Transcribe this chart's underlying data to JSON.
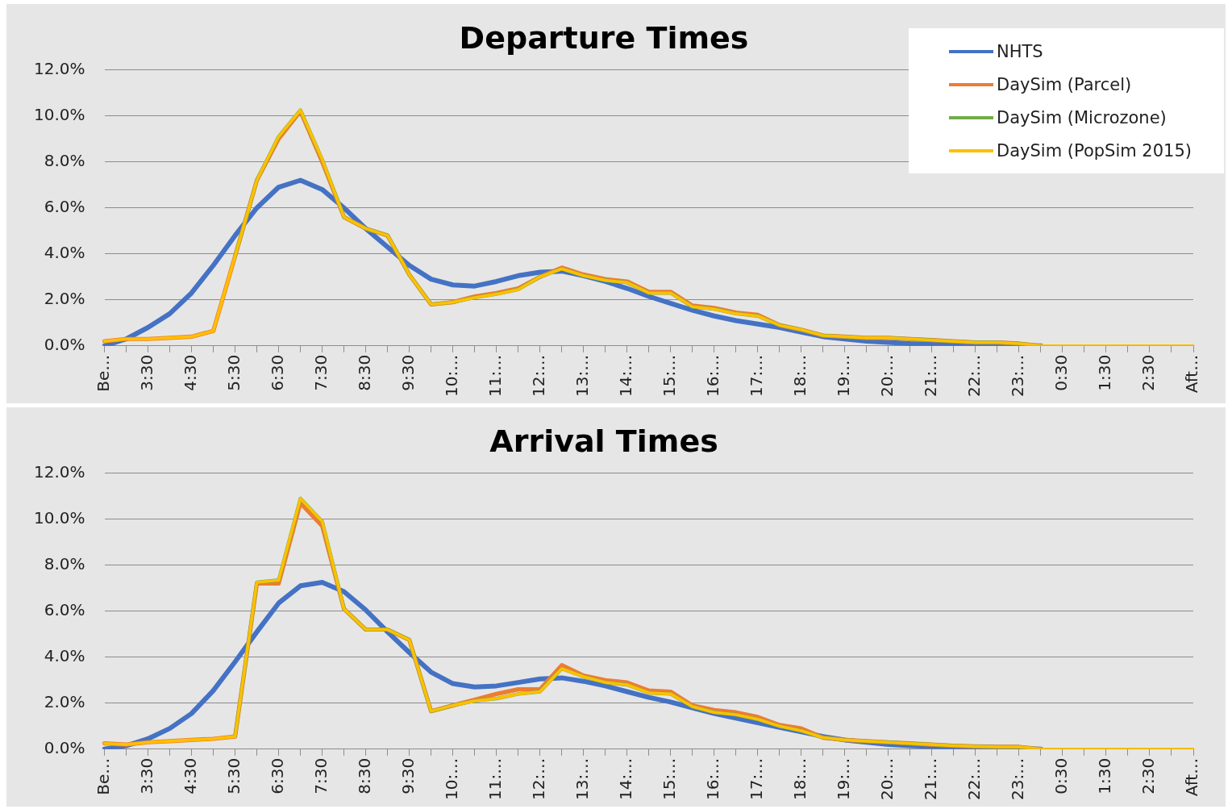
{
  "chart_data": [
    {
      "type": "line",
      "title": "Departure Times",
      "categories": [
        "Be…",
        null,
        "3:30",
        null,
        "4:30",
        null,
        "5:30",
        null,
        "6:30",
        null,
        "7:30",
        null,
        "8:30",
        null,
        "9:30",
        null,
        "10:…",
        null,
        "11:…",
        null,
        "12:…",
        null,
        "13:…",
        null,
        "14:…",
        null,
        "15:…",
        null,
        "16:…",
        null,
        "17:…",
        null,
        "18:…",
        null,
        "19:…",
        null,
        "20:…",
        null,
        "21:…",
        null,
        "22:…",
        null,
        "23:…",
        null,
        "0:30",
        null,
        "1:30",
        null,
        "2:30",
        null,
        "Aft…"
      ],
      "series": [
        {
          "name": "NHTS",
          "color": "#4472c4",
          "values": [
            0.0,
            0.3,
            0.8,
            1.4,
            2.3,
            3.5,
            4.8,
            6.0,
            6.9,
            7.2,
            6.8,
            6.0,
            5.1,
            4.3,
            3.5,
            2.9,
            2.65,
            2.6,
            2.8,
            3.05,
            3.2,
            3.25,
            3.05,
            2.8,
            2.5,
            2.15,
            1.85,
            1.55,
            1.3,
            1.1,
            0.95,
            0.8,
            0.6,
            0.4,
            0.3,
            0.2,
            0.15,
            0.1,
            0.08,
            0.05,
            0.03,
            0,
            0,
            0,
            null,
            null,
            null,
            null,
            null,
            null,
            null
          ]
        },
        {
          "name": "DaySim (Parcel)",
          "color": "#ed7d31",
          "values": [
            0.2,
            0.3,
            0.3,
            0.35,
            0.4,
            0.65,
            3.9,
            7.2,
            9.0,
            10.2,
            8.0,
            5.6,
            5.1,
            4.8,
            3.1,
            1.8,
            1.9,
            2.15,
            2.3,
            2.5,
            3.0,
            3.4,
            3.1,
            2.9,
            2.8,
            2.35,
            2.35,
            1.75,
            1.65,
            1.45,
            1.35,
            0.9,
            0.7,
            0.45,
            0.4,
            0.35,
            0.35,
            0.3,
            0.25,
            0.2,
            0.15,
            0.15,
            0.1,
            0,
            null,
            null,
            null,
            null,
            null,
            null,
            null
          ]
        },
        {
          "name": "DaySim (Microzone)",
          "color": "#70ad47",
          "values": [
            null,
            null,
            null,
            null,
            null,
            null,
            3.9,
            7.2,
            9.1,
            10.25,
            8.1,
            5.6,
            5.1,
            4.8,
            3.1,
            1.8,
            1.9,
            2.1,
            2.25,
            2.45,
            3.0,
            3.35,
            3.05,
            2.85,
            2.75,
            2.3,
            2.3,
            1.7,
            1.6,
            1.4,
            1.3,
            0.9,
            0.7,
            0.45,
            0.4,
            0.35,
            0.35,
            0.3,
            0.25,
            0.2,
            0.15,
            0.15,
            0.1,
            0,
            null,
            null,
            null,
            null,
            null,
            null,
            null
          ]
        },
        {
          "name": "DaySim (PopSim 2015)",
          "color": "#ffc000",
          "values": [
            0.2,
            0.3,
            0.3,
            0.35,
            0.4,
            0.65,
            3.9,
            7.2,
            9.1,
            10.25,
            8.1,
            5.6,
            5.1,
            4.8,
            3.1,
            1.8,
            1.9,
            2.1,
            2.25,
            2.45,
            3.0,
            3.35,
            3.05,
            2.85,
            2.75,
            2.3,
            2.3,
            1.7,
            1.6,
            1.4,
            1.3,
            0.9,
            0.7,
            0.45,
            0.4,
            0.35,
            0.35,
            0.3,
            0.25,
            0.2,
            0.15,
            0.15,
            0.1,
            0,
            0,
            0,
            0,
            0,
            0,
            0,
            0
          ]
        }
      ],
      "ylim": [
        0,
        12
      ],
      "yticks": [
        {
          "value": 0,
          "label": "0.0%"
        },
        {
          "value": 2,
          "label": "2.0%"
        },
        {
          "value": 4,
          "label": "4.0%"
        },
        {
          "value": 6,
          "label": "6.0%"
        },
        {
          "value": 8,
          "label": "8.0%"
        },
        {
          "value": 10,
          "label": "10.0%"
        },
        {
          "value": 12,
          "label": "12.0%"
        }
      ],
      "grid": "y",
      "legend": "top right"
    },
    {
      "type": "line",
      "title": "Arrival Times",
      "categories": [
        "Be…",
        null,
        "3:30",
        null,
        "4:30",
        null,
        "5:30",
        null,
        "6:30",
        null,
        "7:30",
        null,
        "8:30",
        null,
        "9:30",
        null,
        "10:…",
        null,
        "11:…",
        null,
        "12:…",
        null,
        "13:…",
        null,
        "14:…",
        null,
        "15:…",
        null,
        "16:…",
        null,
        "17:…",
        null,
        "18:…",
        null,
        "19:…",
        null,
        "20:…",
        null,
        "21:…",
        null,
        "22:…",
        null,
        "23:…",
        null,
        "0:30",
        null,
        "1:30",
        null,
        "2:30",
        null,
        "Aft…"
      ],
      "series": [
        {
          "color": "#4472c4",
          "values": [
            0.0,
            0.15,
            0.45,
            0.9,
            1.55,
            2.55,
            3.8,
            5.1,
            6.35,
            7.1,
            7.25,
            6.85,
            6.05,
            5.1,
            4.2,
            3.35,
            2.85,
            2.7,
            2.75,
            2.9,
            3.05,
            3.1,
            2.95,
            2.75,
            2.5,
            2.25,
            2.05,
            1.8,
            1.55,
            1.35,
            1.15,
            0.95,
            0.75,
            0.55,
            0.4,
            0.3,
            0.2,
            0.15,
            0.12,
            0.1,
            0.08,
            0.05,
            0.03,
            0,
            null,
            null,
            null,
            null,
            null,
            null,
            null
          ]
        },
        {
          "color": "#ed7d31",
          "values": [
            0.25,
            0.2,
            0.3,
            0.35,
            0.4,
            0.45,
            0.55,
            7.2,
            7.2,
            10.7,
            9.7,
            6.1,
            5.2,
            5.2,
            4.75,
            1.65,
            1.9,
            2.15,
            2.4,
            2.6,
            2.6,
            3.65,
            3.2,
            3.0,
            2.9,
            2.55,
            2.5,
            1.9,
            1.7,
            1.6,
            1.4,
            1.05,
            0.9,
            0.5,
            0.4,
            0.35,
            0.3,
            0.25,
            0.2,
            0.15,
            0.12,
            0.1,
            0.1,
            0,
            null,
            null,
            null,
            null,
            null,
            null,
            null
          ]
        },
        {
          "color": "#70ad47",
          "values": [
            null,
            null,
            null,
            null,
            null,
            null,
            0.55,
            7.25,
            7.35,
            10.9,
            9.9,
            6.1,
            5.2,
            5.2,
            4.75,
            1.65,
            1.9,
            2.1,
            2.2,
            2.4,
            2.5,
            3.5,
            3.15,
            2.9,
            2.8,
            2.45,
            2.4,
            1.85,
            1.6,
            1.5,
            1.3,
            1.0,
            0.8,
            0.5,
            0.4,
            0.35,
            0.3,
            0.25,
            0.2,
            0.15,
            0.12,
            0.1,
            0.1,
            0,
            null,
            null,
            null,
            null,
            null,
            null,
            null
          ]
        },
        {
          "color": "#ffc000",
          "values": [
            0.25,
            0.2,
            0.3,
            0.35,
            0.4,
            0.45,
            0.55,
            7.25,
            7.35,
            10.9,
            9.9,
            6.1,
            5.2,
            5.2,
            4.75,
            1.65,
            1.9,
            2.1,
            2.2,
            2.4,
            2.5,
            3.5,
            3.15,
            2.9,
            2.8,
            2.45,
            2.4,
            1.85,
            1.6,
            1.5,
            1.3,
            1.0,
            0.8,
            0.5,
            0.4,
            0.35,
            0.3,
            0.25,
            0.2,
            0.15,
            0.12,
            0.1,
            0.1,
            0,
            0,
            0,
            0,
            0,
            0,
            0,
            0
          ]
        }
      ],
      "ylim": [
        0,
        12
      ],
      "yticks": [
        {
          "value": 0,
          "label": "0.0%"
        },
        {
          "value": 2,
          "label": "2.0%"
        },
        {
          "value": 4,
          "label": "4.0%"
        },
        {
          "value": 6,
          "label": "6.0%"
        },
        {
          "value": 8,
          "label": "8.0%"
        },
        {
          "value": 10,
          "label": "10.0%"
        },
        {
          "value": 12,
          "label": "12.0%"
        }
      ],
      "grid": "y"
    }
  ]
}
